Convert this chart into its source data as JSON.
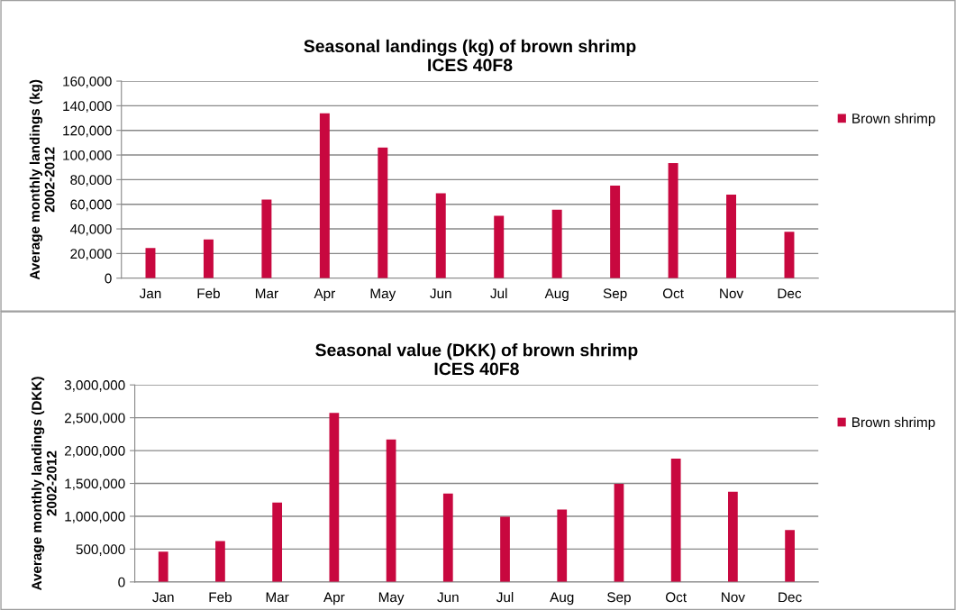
{
  "chart_data": [
    {
      "type": "bar",
      "title": "Seasonal landings (kg) of brown shrimp\nICES 40F8",
      "ylabel": "Average monthly landings (kg)\n2002-2012",
      "categories": [
        "Jan",
        "Feb",
        "Mar",
        "Apr",
        "May",
        "Jun",
        "Jul",
        "Aug",
        "Sep",
        "Oct",
        "Nov",
        "Dec"
      ],
      "series": [
        {
          "name": "Brown shrimp",
          "color": "#c8083f",
          "values": [
            24400,
            31500,
            63900,
            133900,
            106100,
            69000,
            50700,
            55600,
            75100,
            93400,
            67800,
            37600
          ]
        }
      ],
      "ylim": [
        0,
        160000
      ],
      "yticks": [
        {
          "value": 0,
          "label": "0"
        },
        {
          "value": 20000,
          "label": "20,000"
        },
        {
          "value": 40000,
          "label": "40,000"
        },
        {
          "value": 60000,
          "label": "60,000"
        },
        {
          "value": 80000,
          "label": "80,000"
        },
        {
          "value": 100000,
          "label": "100,000"
        },
        {
          "value": 120000,
          "label": "120,000"
        },
        {
          "value": 140000,
          "label": "140,000"
        },
        {
          "value": 160000,
          "label": "160,000"
        }
      ],
      "grid": "y",
      "legend": "right"
    },
    {
      "type": "bar",
      "title": "Seasonal value (DKK) of brown shrimp\nICES 40F8",
      "ylabel": "Average monthly landings (DKK)\n2002-2012",
      "categories": [
        "Jan",
        "Feb",
        "Mar",
        "Apr",
        "May",
        "Jun",
        "Jul",
        "Aug",
        "Sep",
        "Oct",
        "Nov",
        "Dec"
      ],
      "series": [
        {
          "name": "Brown shrimp",
          "color": "#c8083f",
          "values": [
            462000,
            623000,
            1209000,
            2573000,
            2170000,
            1346000,
            994000,
            1104000,
            1493000,
            1877000,
            1374000,
            792000
          ]
        }
      ],
      "ylim": [
        0,
        3000000
      ],
      "yticks": [
        {
          "value": 0,
          "label": "0"
        },
        {
          "value": 500000,
          "label": "500,000"
        },
        {
          "value": 1000000,
          "label": "1,000,000"
        },
        {
          "value": 1500000,
          "label": "1,500,000"
        },
        {
          "value": 2000000,
          "label": "2,000,000"
        },
        {
          "value": 2500000,
          "label": "2,500,000"
        },
        {
          "value": 3000000,
          "label": "3,000,000"
        }
      ],
      "grid": "y",
      "legend": "right"
    }
  ]
}
